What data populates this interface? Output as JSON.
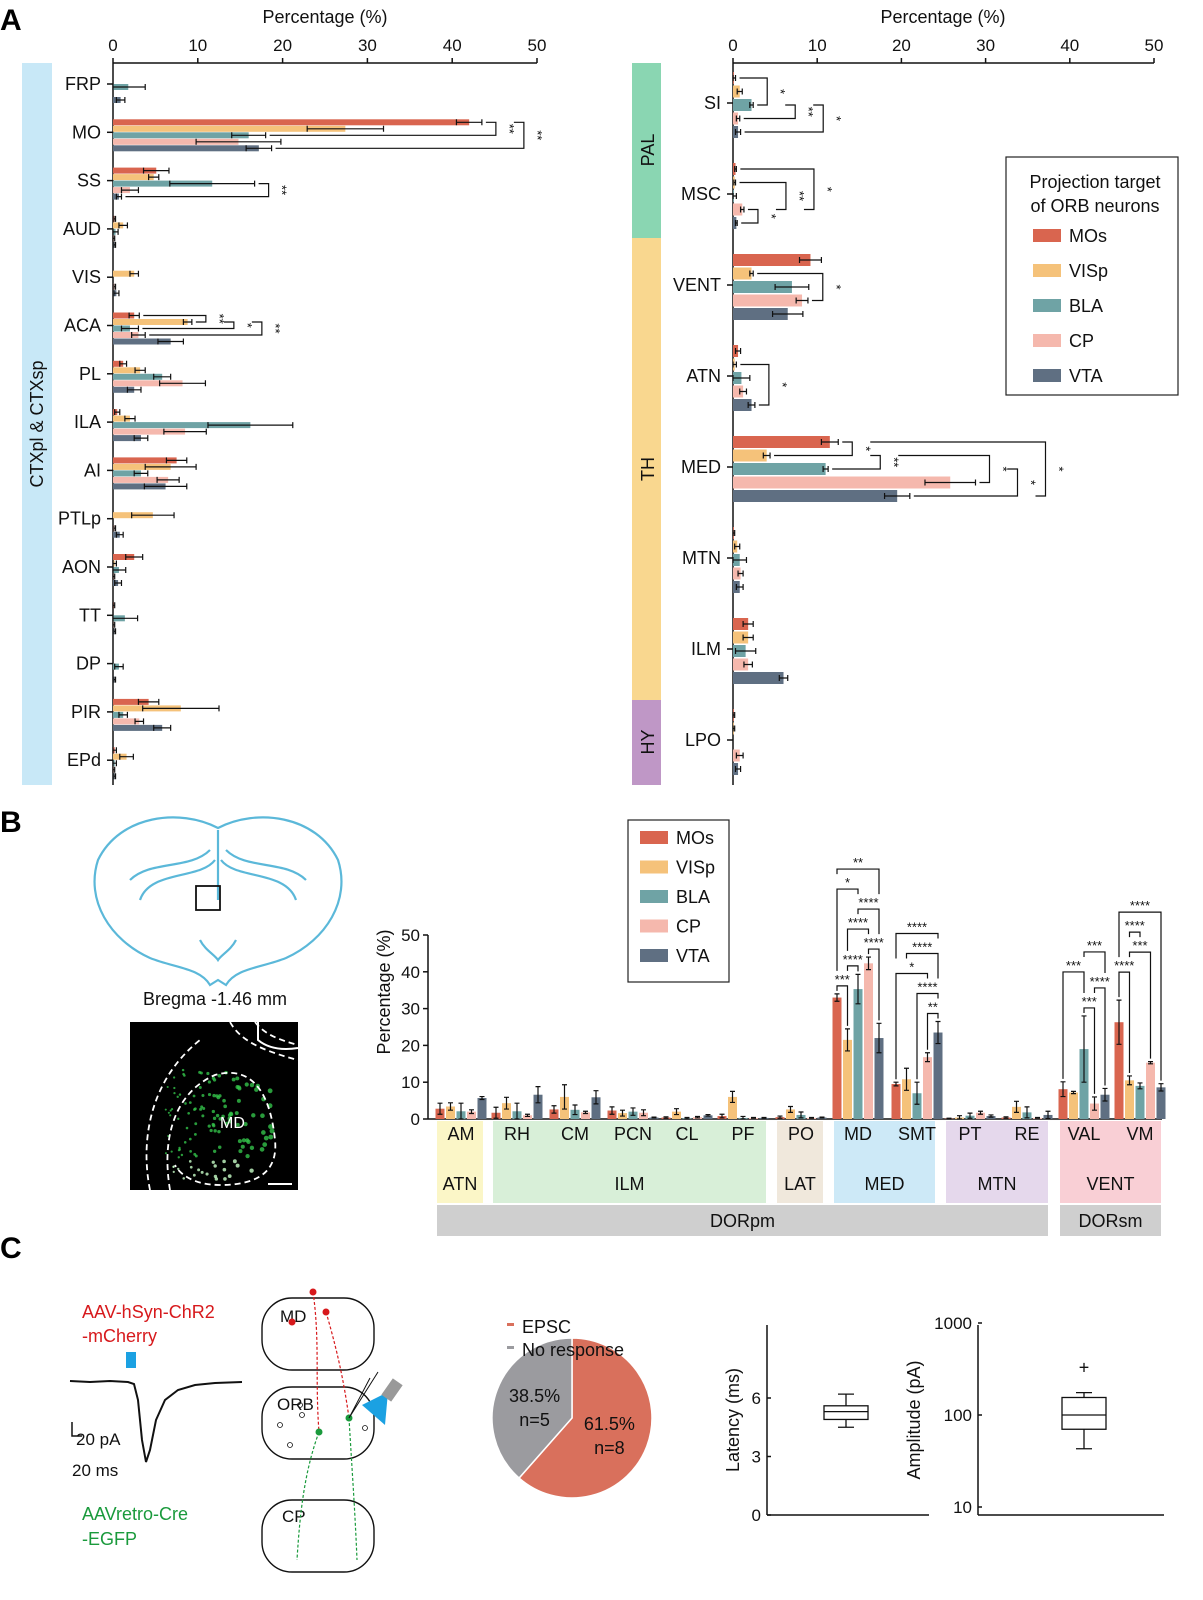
{
  "colors": {
    "MOs": "#d9654f",
    "VISp": "#f5c27a",
    "BLA": "#6fa3a5",
    "CP": "#f5b8ad",
    "VTA": "#5f6f82"
  },
  "panels": {
    "a": "A",
    "b": "B",
    "c": "C"
  },
  "series_names": [
    "MOs",
    "VISp",
    "BLA",
    "CP",
    "VTA"
  ],
  "chart_data": [
    {
      "id": "A-left",
      "type": "bar",
      "orientation": "horizontal",
      "xlabel": "Percentage (%)",
      "xlim": [
        0,
        50
      ],
      "xticks": [
        "0",
        "10",
        "20",
        "30",
        "40",
        "50"
      ],
      "region_label": "CTXpl & CTXsp",
      "categories": [
        "FRP",
        "MO",
        "SS",
        "AUD",
        "VIS",
        "ACA",
        "PL",
        "ILA",
        "AI",
        "PTLp",
        "AON",
        "TT",
        "DP",
        "PIR",
        "EPd"
      ],
      "series": [
        {
          "name": "MOs",
          "values": [
            0,
            42,
            5.1,
            0.2,
            0,
            2.5,
            1.2,
            0.5,
            7.5,
            0,
            2.5,
            0.1,
            0,
            4.2,
            0.2
          ],
          "errors": [
            0,
            1.5,
            1.5,
            0.1,
            0,
            0.6,
            0.4,
            0.3,
            1.2,
            0,
            1,
            0.1,
            0,
            1.2,
            0.2
          ]
        },
        {
          "name": "VISp",
          "values": [
            0,
            27.4,
            4.8,
            1.2,
            2.5,
            8.8,
            3.2,
            2,
            6.8,
            4.7,
            0.2,
            0,
            0,
            8,
            1.6
          ],
          "errors": [
            0,
            4.5,
            0.6,
            0.5,
            0.5,
            0.5,
            0.6,
            0.6,
            3,
            2.5,
            0.2,
            0,
            0,
            4.5,
            0.8
          ]
        },
        {
          "name": "BLA",
          "values": [
            1.8,
            16,
            11.7,
            0.3,
            0,
            2,
            5.8,
            16.2,
            3.3,
            0,
            0.7,
            1.4,
            0.7,
            1.2,
            0.2
          ],
          "errors": [
            2,
            2,
            5,
            0.3,
            0,
            1,
            1,
            5,
            0.8,
            0,
            0.8,
            1.5,
            0.5,
            0.5,
            0.2
          ]
        },
        {
          "name": "CP",
          "values": [
            0,
            14.8,
            2,
            0.1,
            0.2,
            3,
            8.2,
            8.5,
            6.5,
            0.2,
            0.1,
            0.1,
            0,
            3.1,
            0.1
          ],
          "errors": [
            0,
            5,
            1,
            0.1,
            0.1,
            0.8,
            2.7,
            2.5,
            1.3,
            0.1,
            0.1,
            0.1,
            0,
            0.5,
            0.1
          ]
        },
        {
          "name": "VTA",
          "values": [
            0.9,
            17.2,
            0.7,
            0.2,
            0.4,
            6.8,
            2.5,
            3.3,
            6.2,
            0.8,
            0.6,
            0.2,
            0.2,
            5.8,
            0.2
          ],
          "errors": [
            0.5,
            1.5,
            0.3,
            0.1,
            0.3,
            1.5,
            0.8,
            0.8,
            2.5,
            0.4,
            0.4,
            0.1,
            0.1,
            1,
            0.1
          ]
        }
      ],
      "significance": [
        {
          "group": 1,
          "a": 0,
          "b": 2,
          "label": "**"
        },
        {
          "group": 1,
          "a": 0,
          "b": 4,
          "label": "**"
        },
        {
          "group": 2,
          "a": 2,
          "b": 4,
          "label": "**"
        },
        {
          "group": 5,
          "a": 0,
          "b": 1,
          "label": "**"
        },
        {
          "group": 5,
          "a": 1,
          "b": 2,
          "label": "*"
        },
        {
          "group": 5,
          "a": 1,
          "b": 3,
          "label": "**"
        }
      ]
    },
    {
      "id": "A-right",
      "type": "bar",
      "orientation": "horizontal",
      "xlabel": "Percentage (%)",
      "xlim": [
        0,
        50
      ],
      "xticks": [
        "0",
        "10",
        "20",
        "30",
        "40",
        "50"
      ],
      "regions": [
        "PAL",
        "TH",
        "HY"
      ],
      "categories": [
        "SI",
        "MSC",
        "VENT",
        "ATN",
        "MED",
        "MTN",
        "ILM",
        "LPO"
      ],
      "series": [
        {
          "name": "MOs",
          "values": [
            0.1,
            0.3,
            9.2,
            0.6,
            11.5,
            0.1,
            1.8,
            0.1
          ],
          "errors": [
            0.2,
            0.1,
            1.3,
            0.3,
            1,
            0.1,
            0.6,
            0.1
          ]
        },
        {
          "name": "VISp",
          "values": [
            0.8,
            0.2,
            2.2,
            0.2,
            4,
            0.5,
            1.8,
            0.1
          ],
          "errors": [
            0.3,
            0.1,
            0.2,
            0.2,
            0.4,
            0.3,
            0.6,
            0.1
          ]
        },
        {
          "name": "BLA",
          "values": [
            2.2,
            0.1,
            7,
            1,
            11,
            0.8,
            1.5,
            0
          ],
          "errors": [
            0.2,
            0.3,
            2,
            1,
            0.3,
            0.8,
            1.2,
            0
          ]
        },
        {
          "name": "CP",
          "values": [
            0.6,
            1.1,
            8.2,
            1.2,
            25.8,
            0.9,
            1.8,
            0.8
          ],
          "errors": [
            0.2,
            0.2,
            0.7,
            0.4,
            3,
            0.3,
            0.5,
            0.4
          ]
        },
        {
          "name": "VTA",
          "values": [
            0.6,
            0.4,
            6.5,
            2.2,
            19.5,
            0.8,
            6,
            0.6
          ],
          "errors": [
            0.3,
            0.1,
            1.8,
            0.4,
            1.5,
            0.4,
            0.5,
            0.3
          ]
        }
      ],
      "significance": [
        {
          "group": 0,
          "a": 0,
          "b": 2,
          "label": "*"
        },
        {
          "group": 0,
          "a": 2,
          "b": 3,
          "label": "**"
        },
        {
          "group": 0,
          "a": 2,
          "b": 4,
          "label": "*"
        },
        {
          "group": 1,
          "a": 3,
          "b": 4,
          "label": "*"
        },
        {
          "group": 1,
          "a": 1,
          "b": 3,
          "label": "**"
        },
        {
          "group": 1,
          "a": 0,
          "b": 3,
          "label": "*"
        },
        {
          "group": 2,
          "a": 1,
          "b": 3,
          "label": "*"
        },
        {
          "group": 3,
          "a": 1,
          "b": 4,
          "label": "*"
        },
        {
          "group": 4,
          "a": 0,
          "b": 1,
          "label": "*"
        },
        {
          "group": 4,
          "a": 1,
          "b": 2,
          "label": "**"
        },
        {
          "group": 4,
          "a": 1,
          "b": 3,
          "label": "*"
        },
        {
          "group": 4,
          "a": 2,
          "b": 4,
          "label": "*"
        },
        {
          "group": 4,
          "a": 0,
          "b": 4,
          "label": "*"
        }
      ],
      "legend": {
        "title_line1": "Projection target",
        "title_line2": "of ORB neurons",
        "position": "right"
      }
    },
    {
      "id": "B",
      "type": "bar",
      "orientation": "vertical",
      "ylabel": "Percentage (%)",
      "ylim": [
        0,
        50
      ],
      "yticks": [
        "0",
        "10",
        "20",
        "30",
        "40",
        "50"
      ],
      "categories": [
        "AM",
        "RH",
        "CM",
        "PCN",
        "CL",
        "PF",
        "PO",
        "MD",
        "SMT",
        "PT",
        "RE",
        "VAL",
        "VM"
      ],
      "subregions": [
        "ATN",
        "ILM",
        "LAT",
        "MED",
        "MTN",
        "VENT"
      ],
      "regions": [
        "DORpm",
        "DORsm"
      ],
      "series": [
        {
          "name": "MOs",
          "values": [
            2.8,
            1.7,
            2.6,
            2.3,
            0.4,
            0.8,
            0.5,
            33,
            9.5,
            0.1,
            0.4,
            8.1,
            26.3
          ],
          "errors": [
            1.5,
            1.5,
            1,
            1,
            0.2,
            0.5,
            0.3,
            1,
            0.5,
            0.1,
            0.2,
            2,
            6
          ]
        },
        {
          "name": "VISp",
          "values": [
            3.4,
            4.3,
            6,
            1.6,
            2,
            6,
            2.6,
            21.5,
            10.8,
            0.4,
            3.3,
            7.2,
            10.5
          ],
          "errors": [
            1,
            1.6,
            3.3,
            0.8,
            0.8,
            1.5,
            0.8,
            3,
            3,
            0.5,
            1.5,
            0.3,
            1.2
          ]
        },
        {
          "name": "BLA",
          "values": [
            2.1,
            2.1,
            2.5,
            2,
            0.2,
            0.3,
            1.1,
            35.3,
            7,
            0.9,
            1.8,
            19,
            9
          ],
          "errors": [
            2.2,
            2.2,
            1.3,
            1,
            0.2,
            0.4,
            0.8,
            4,
            3,
            0.7,
            1.5,
            9,
            0.8
          ]
        },
        {
          "name": "CP",
          "values": [
            2,
            1,
            1.8,
            1.7,
            0.5,
            0.3,
            0.3,
            42.3,
            16.8,
            1.7,
            0.3,
            4.2,
            15.3
          ],
          "errors": [
            0.5,
            0.3,
            0.3,
            0.8,
            0.2,
            0.1,
            0.1,
            1.7,
            1.2,
            0.4,
            0.1,
            1.8,
            0.3
          ]
        },
        {
          "name": "VTA",
          "values": [
            5.7,
            6.6,
            5.9,
            0.4,
            1,
            0.3,
            0.4,
            22,
            23.5,
            0.8,
            1.1,
            6.6,
            8.6
          ],
          "errors": [
            0.4,
            2.2,
            1.8,
            0.1,
            0.2,
            0.1,
            0.1,
            4,
            3,
            0.3,
            1,
            1.7,
            1
          ]
        }
      ],
      "significance": [
        {
          "group": 7,
          "a": 0,
          "b": 1,
          "label": "***"
        },
        {
          "group": 7,
          "a": 1,
          "b": 2,
          "label": "****"
        },
        {
          "group": 7,
          "a": 3,
          "b": 4,
          "label": "****"
        },
        {
          "group": 7,
          "a": 1,
          "b": 3,
          "label": "****"
        },
        {
          "group": 7,
          "a": 2,
          "b": 4,
          "label": "****"
        },
        {
          "group": 7,
          "a": 0,
          "b": 2,
          "label": "*"
        },
        {
          "group": 7,
          "a": 0,
          "b": 4,
          "label": "**"
        },
        {
          "group": 8,
          "a": 3,
          "b": 4,
          "label": "**"
        },
        {
          "group": 8,
          "a": 2,
          "b": 4,
          "label": "****"
        },
        {
          "group": 8,
          "a": 0,
          "b": 3,
          "label": "*"
        },
        {
          "group": 8,
          "a": 1,
          "b": 4,
          "label": "****"
        },
        {
          "group": 8,
          "a": 0,
          "b": 4,
          "label": "****"
        },
        {
          "group": 11,
          "a": 2,
          "b": 3,
          "label": "***"
        },
        {
          "group": 11,
          "a": 3,
          "b": 4,
          "label": "****"
        },
        {
          "group": 11,
          "a": 0,
          "b": 2,
          "label": "***"
        },
        {
          "group": 11,
          "a": 2,
          "b": 4,
          "label": "***"
        },
        {
          "group": 12,
          "a": 0,
          "b": 1,
          "label": "****"
        },
        {
          "group": 12,
          "a": 1,
          "b": 3,
          "label": "***"
        },
        {
          "group": 12,
          "a": 1,
          "b": 2,
          "label": "****"
        },
        {
          "group": 12,
          "a": 0,
          "b": 4,
          "label": "****"
        }
      ]
    },
    {
      "id": "C-pie",
      "type": "pie",
      "slices": [
        {
          "name": "EPSC",
          "value": 61.5,
          "label": "61.5%",
          "n": "n=8",
          "color": "#d9705c"
        },
        {
          "name": "No response",
          "value": 38.5,
          "label": "38.5%",
          "n": "n=5",
          "color": "#9b9b9f"
        }
      ]
    },
    {
      "id": "C-latency",
      "type": "box",
      "ylabel": "Latency (ms)",
      "ylim": [
        0,
        8
      ],
      "yticks": [
        "0",
        "3",
        "6"
      ],
      "box": {
        "min": 4.5,
        "q1": 4.9,
        "median": 5.3,
        "q3": 5.6,
        "max": 6.2
      }
    },
    {
      "id": "C-amplitude",
      "type": "box",
      "yscale": "log",
      "ylabel": "Amplitude (pA)",
      "ylim": [
        8,
        1000
      ],
      "yticks": [
        "10",
        "100",
        "1000"
      ],
      "box": {
        "min": 43,
        "q1": 70,
        "median": 100,
        "q3": 155,
        "max": 175,
        "outliers": [
          330
        ]
      },
      "outlier_marker": "+"
    }
  ],
  "panel_b": {
    "section_label": "Bregma -1.46 mm",
    "image_label": "MD"
  },
  "panel_c": {
    "virus_red_1": "AAV-hSyn-ChR2",
    "virus_red_2": "-mCherry",
    "virus_green_1": "AAVretro-Cre",
    "virus_green_2": "-EGFP",
    "scale_pa": "20 pA",
    "scale_ms": "20 ms",
    "regions": [
      "MD",
      "ORB",
      "CP"
    ]
  }
}
